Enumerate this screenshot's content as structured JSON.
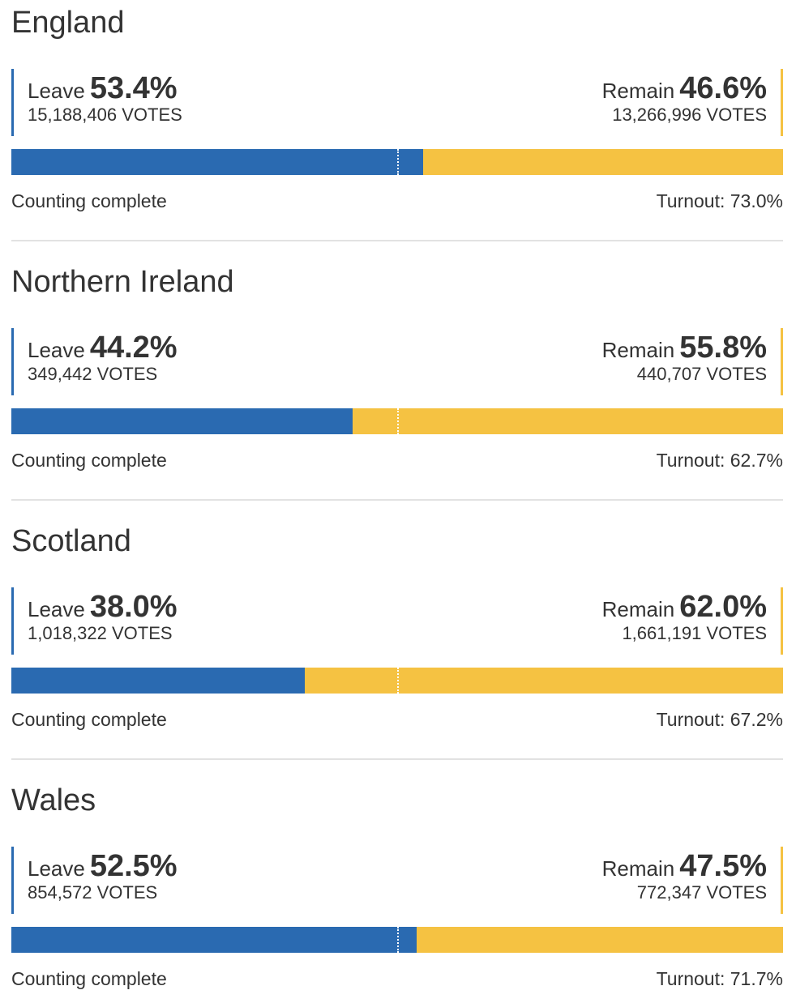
{
  "regions": [
    {
      "name": "England",
      "leave": {
        "label": "Leave",
        "percent": {
          "value": 53.4,
          "label": "53.4%"
        },
        "votes": "15,188,406 VOTES"
      },
      "remain": {
        "label": "Remain",
        "percent": {
          "value": 46.6,
          "label": "46.6%"
        },
        "votes": "13,266,996 VOTES"
      },
      "status": "Counting complete",
      "turnout": "Turnout: 73.0%"
    },
    {
      "name": "Northern Ireland",
      "leave": {
        "label": "Leave",
        "percent": {
          "value": 44.2,
          "label": "44.2%"
        },
        "votes": "349,442 VOTES"
      },
      "remain": {
        "label": "Remain",
        "percent": {
          "value": 55.8,
          "label": "55.8%"
        },
        "votes": "440,707 VOTES"
      },
      "status": "Counting complete",
      "turnout": "Turnout: 62.7%"
    },
    {
      "name": "Scotland",
      "leave": {
        "label": "Leave",
        "percent": {
          "value": 38.0,
          "label": "38.0%"
        },
        "votes": "1,018,322 VOTES"
      },
      "remain": {
        "label": "Remain",
        "percent": {
          "value": 62.0,
          "label": "62.0%"
        },
        "votes": "1,661,191 VOTES"
      },
      "status": "Counting complete",
      "turnout": "Turnout: 67.2%"
    },
    {
      "name": "Wales",
      "leave": {
        "label": "Leave",
        "percent": {
          "value": 52.5,
          "label": "52.5%"
        },
        "votes": "854,572 VOTES"
      },
      "remain": {
        "label": "Remain",
        "percent": {
          "value": 47.5,
          "label": "47.5%"
        },
        "votes": "772,347 VOTES"
      },
      "status": "Counting complete",
      "turnout": "Turnout: 71.7%"
    }
  ]
}
